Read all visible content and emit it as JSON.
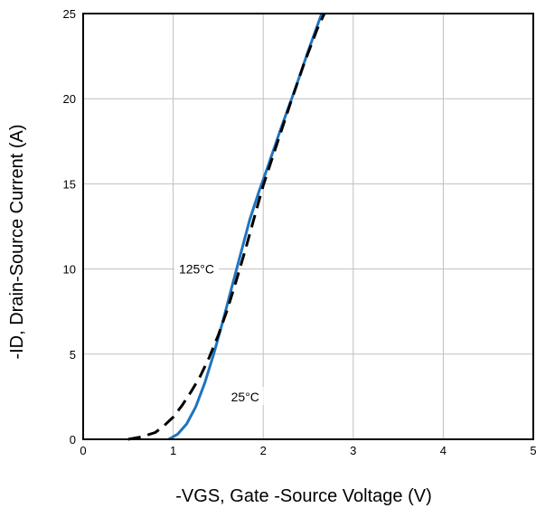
{
  "chart_data": {
    "type": "line",
    "title": "",
    "xlabel": "-VGS, Gate -Source Voltage (V)",
    "ylabel": "-ID, Drain-Source Current (A)",
    "xlim": [
      0,
      5
    ],
    "ylim": [
      0,
      25
    ],
    "x_ticks": [
      0,
      1,
      2,
      3,
      4,
      5
    ],
    "y_ticks": [
      0,
      5,
      10,
      15,
      20,
      25
    ],
    "x_tick_labels": [
      "0",
      "1",
      "2",
      "3",
      "4",
      "5"
    ],
    "y_tick_labels": [
      "0",
      "5",
      "10",
      "15",
      "20",
      "25"
    ],
    "grid": true,
    "series": [
      {
        "name": "25°C",
        "color": "#1f74bf",
        "dash": "solid",
        "x": [
          0.95,
          1.05,
          1.15,
          1.25,
          1.35,
          1.45,
          1.55,
          1.65,
          1.75,
          1.85,
          1.95,
          2.05,
          2.2,
          2.35,
          2.5,
          2.65
        ],
        "y": [
          0.0,
          0.3,
          0.9,
          1.9,
          3.3,
          5.0,
          6.9,
          8.9,
          10.9,
          12.9,
          14.5,
          16.0,
          18.3,
          20.5,
          22.8,
          25.0
        ]
      },
      {
        "name": "125°C",
        "color": "#000000",
        "dash": "dashed",
        "x": [
          0.5,
          0.65,
          0.8,
          0.9,
          1.0,
          1.1,
          1.2,
          1.3,
          1.4,
          1.5,
          1.6,
          1.7,
          1.8,
          1.9,
          2.0,
          2.15,
          2.3,
          2.45,
          2.6,
          2.68
        ],
        "y": [
          0.0,
          0.15,
          0.4,
          0.8,
          1.3,
          2.0,
          2.8,
          3.7,
          4.8,
          6.1,
          7.6,
          9.3,
          11.1,
          13.0,
          14.9,
          17.3,
          19.7,
          22.0,
          24.1,
          25.0
        ]
      }
    ],
    "annotations": [
      {
        "text": "125°C",
        "x": 1.26,
        "y": 10.0
      },
      {
        "text": "25°C",
        "x": 1.8,
        "y": 2.5
      }
    ]
  }
}
